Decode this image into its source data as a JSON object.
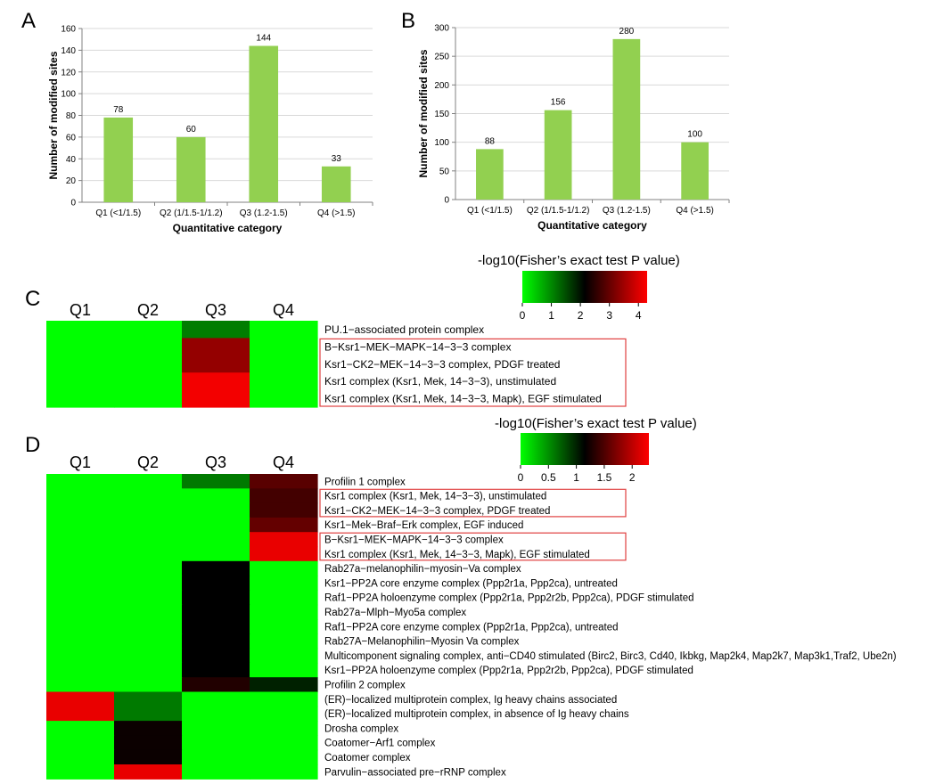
{
  "panels": {
    "a": "A",
    "b": "B",
    "c": "C",
    "d": "D"
  },
  "colors": {
    "bar": "#92d050",
    "low": "#00ff00",
    "mid": "#000000",
    "high": "#ff0000",
    "box": "#e04040"
  },
  "chart_data": [
    {
      "panel": "A",
      "type": "bar",
      "categories": [
        "Q1 (<1/1.5)",
        "Q2 (1/1.5-1/1.2)",
        "Q3 (1.2-1.5)",
        "Q4 (>1.5)"
      ],
      "values": [
        78,
        60,
        144,
        33
      ],
      "data_labels": [
        "78",
        "60",
        "144",
        "33"
      ],
      "xlabel": "Quantitative category",
      "ylabel": "Number of modified sites",
      "ylim": [
        0,
        160
      ],
      "yticks": [
        "0",
        "20",
        "40",
        "60",
        "80",
        "100",
        "120",
        "140",
        "160"
      ],
      "grid": true
    },
    {
      "panel": "B",
      "type": "bar",
      "categories": [
        "Q1 (<1/1.5)",
        "Q2 (1/1.5-1/1.2)",
        "Q3 (1.2-1.5)",
        "Q4 (>1.5)"
      ],
      "values": [
        88,
        156,
        280,
        100
      ],
      "data_labels": [
        "88",
        "156",
        "280",
        "100"
      ],
      "xlabel": "Quantitative category",
      "ylabel": "Number of modified sites",
      "ylim": [
        0,
        300
      ],
      "yticks": [
        "0",
        "50",
        "100",
        "150",
        "200",
        "250",
        "300"
      ],
      "grid": true
    },
    {
      "panel": "C",
      "type": "heatmap",
      "columns": [
        "Q1",
        "Q2",
        "Q3",
        "Q4"
      ],
      "rows": [
        "PU.1−associated protein complex",
        "B−Ksr1−MEK−MAPK−14−3−3 complex",
        "Ksr1−CK2−MEK−14−3−3 complex, PDGF treated",
        "Ksr1 complex (Ksr1, Mek, 14−3−3), unstimulated",
        "Ksr1 complex (Ksr1, Mek, 14−3−3, Mapk), EGF stimulated"
      ],
      "values": [
        [
          0,
          0,
          1.1,
          0
        ],
        [
          0,
          0,
          3.4,
          0
        ],
        [
          0,
          0,
          3.4,
          0
        ],
        [
          0,
          0,
          4.2,
          0
        ],
        [
          0,
          0,
          4.2,
          0
        ]
      ],
      "color_range": [
        0,
        4.3
      ],
      "scale_title": "-log10(Fisher’s exact test P value)",
      "scale_ticks": [
        "0",
        "1",
        "2",
        "3",
        "4"
      ],
      "scale_tick_values": [
        0,
        1,
        2,
        3,
        4
      ],
      "boxed_row_groups": [
        [
          1,
          4
        ]
      ]
    },
    {
      "panel": "D",
      "type": "heatmap",
      "columns": [
        "Q1",
        "Q2",
        "Q3",
        "Q4"
      ],
      "rows": [
        "Profilin 1 complex",
        "Ksr1 complex (Ksr1, Mek, 14−3−3), unstimulated",
        "Ksr1−CK2−MEK−14−3−3 complex, PDGF treated",
        "Ksr1−Mek−Braf−Erk complex, EGF induced",
        "B−Ksr1−MEK−MAPK−14−3−3 complex",
        "Ksr1 complex (Ksr1, Mek, 14−3−3, Mapk), EGF stimulated",
        "Rab27a−melanophilin−myosin−Va complex",
        "Ksr1−PP2A core enzyme complex (Ppp2r1a, Ppp2ca), untreated",
        "Raf1−PP2A holoenzyme complex (Ppp2r1a, Ppp2r2b, Ppp2ca), PDGF stimulated",
        "Rab27a−Mlph−Myo5a complex",
        "Raf1−PP2A core enzyme complex (Ppp2r1a, Ppp2ca), untreated",
        "Rab27A−Melanophilin−Myosin Va complex",
        "Multicomponent signaling complex, anti−CD40 stimulated (Birc2, Birc3, Cd40, Ikbkg, Map2k4, Map2k7, Map3k1,Traf2, Ube2n)",
        "Ksr1−PP2A holoenzyme complex (Ppp2r1a, Ppp2r2b, Ppp2ca), PDGF stimulated",
        "Profilin 2 complex",
        "(ER)−localized multiprotein complex, Ig heavy chains associated",
        "(ER)−localized multiprotein complex, in absence of Ig heavy chains",
        "Drosha complex",
        "Coatomer−Arf1 complex",
        "Coatomer complex",
        "Parvulin−associated pre−rRNP complex"
      ],
      "values": [
        [
          0,
          0,
          0.6,
          1.55
        ],
        [
          0,
          0,
          0,
          1.45
        ],
        [
          0,
          0,
          0,
          1.45
        ],
        [
          0,
          0,
          0,
          1.6
        ],
        [
          0,
          0,
          0,
          2.2
        ],
        [
          0,
          0,
          0,
          2.2
        ],
        [
          0,
          0,
          1.15,
          0
        ],
        [
          0,
          0,
          1.15,
          0
        ],
        [
          0,
          0,
          1.15,
          0
        ],
        [
          0,
          0,
          1.15,
          0
        ],
        [
          0,
          0,
          1.15,
          0
        ],
        [
          0,
          0,
          1.15,
          0
        ],
        [
          0,
          0,
          1.15,
          0
        ],
        [
          0,
          0,
          1.15,
          0
        ],
        [
          0,
          0,
          1.3,
          1.0
        ],
        [
          2.2,
          0.6,
          0,
          0
        ],
        [
          2.2,
          0.6,
          0,
          0
        ],
        [
          0,
          1.2,
          0,
          0
        ],
        [
          0,
          1.2,
          0,
          0
        ],
        [
          0,
          1.2,
          0,
          0
        ],
        [
          0,
          2.2,
          0,
          0
        ]
      ],
      "color_range": [
        0,
        2.3
      ],
      "scale_title": "-log10(Fisher’s exact test P value)",
      "scale_ticks": [
        "0",
        "0.5",
        "1",
        "1.5",
        "2"
      ],
      "scale_tick_values": [
        0,
        0.5,
        1,
        1.5,
        2
      ],
      "boxed_row_groups": [
        [
          1,
          2
        ],
        [
          4,
          5
        ]
      ]
    }
  ]
}
